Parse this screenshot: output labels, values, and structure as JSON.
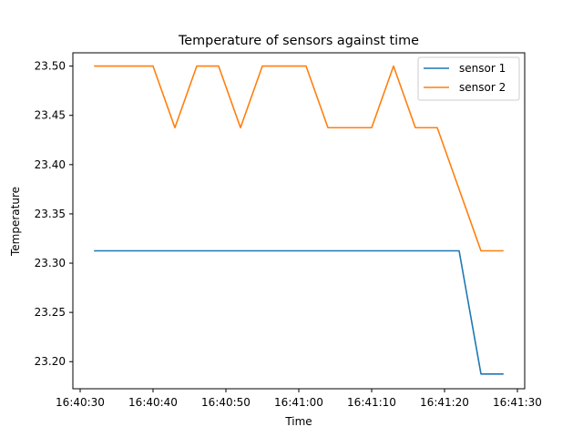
{
  "chart_data": {
    "type": "line",
    "title": "Temperature of sensors against time",
    "xlabel": "Time",
    "ylabel": "Temperature",
    "xlim": [
      "16:40:29",
      "16:41:31"
    ],
    "ylim": [
      23.1725,
      23.5135
    ],
    "x_ticks": [
      "16:40:30",
      "16:40:40",
      "16:40:50",
      "16:41:00",
      "16:41:10",
      "16:41:20",
      "16:41:30"
    ],
    "y_ticks": [
      "23.20",
      "23.25",
      "23.30",
      "23.35",
      "23.40",
      "23.45",
      "23.50"
    ],
    "grid": false,
    "legend": "top-right",
    "series": [
      {
        "name": "sensor 1",
        "color": "#1f77b4",
        "x": [
          "16:40:32",
          "16:41:22",
          "16:41:25",
          "16:41:28"
        ],
        "y": [
          23.3125,
          23.3125,
          23.1875,
          23.1875
        ]
      },
      {
        "name": "sensor 2",
        "color": "#ff7f0e",
        "x": [
          "16:40:32",
          "16:40:40",
          "16:40:43",
          "16:40:46",
          "16:40:49",
          "16:40:52",
          "16:40:55",
          "16:41:01",
          "16:41:04",
          "16:41:10",
          "16:41:13",
          "16:41:16",
          "16:41:19",
          "16:41:25",
          "16:41:28"
        ],
        "y": [
          23.5,
          23.5,
          23.4375,
          23.5,
          23.5,
          23.4375,
          23.5,
          23.5,
          23.4375,
          23.4375,
          23.5,
          23.4375,
          23.4375,
          23.3125,
          23.3125
        ]
      }
    ]
  }
}
